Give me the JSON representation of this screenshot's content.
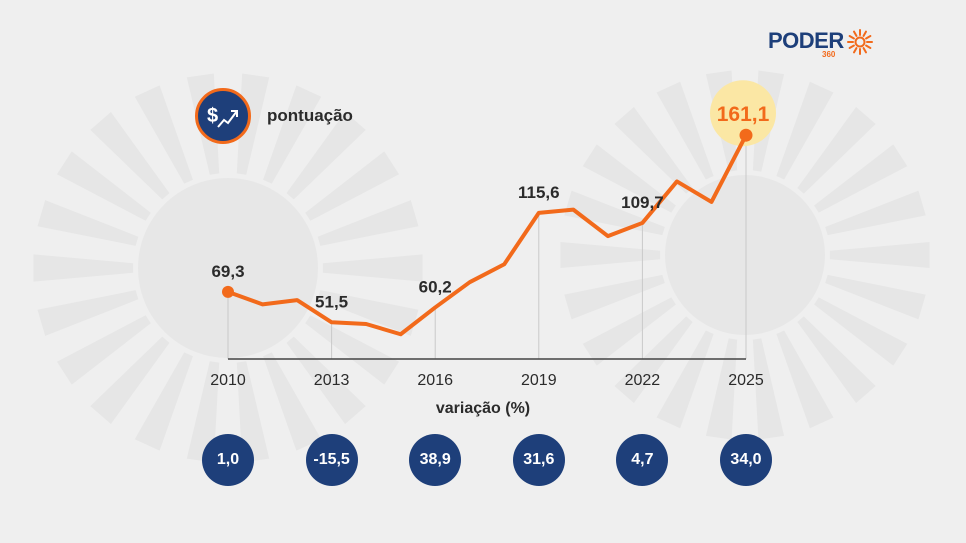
{
  "brand": {
    "name": "PODER",
    "sub": "360"
  },
  "legend": {
    "label": "pontuação",
    "icon": "dollar-trend-up-icon"
  },
  "colors": {
    "line": "#f26a1b",
    "navy": "#1e3f7a",
    "highlight": "#fbe7a4",
    "background": "#efefef"
  },
  "chart_data": {
    "type": "line",
    "x": [
      2010,
      2011,
      2012,
      2013,
      2014,
      2015,
      2016,
      2017,
      2018,
      2019,
      2020,
      2021,
      2022,
      2023,
      2024,
      2025
    ],
    "series": [
      {
        "values": [
          69.3,
          62.0,
          64.5,
          51.5,
          50.5,
          44.5,
          60.2,
          75.0,
          85.5,
          115.6,
          117.5,
          102.0,
          109.7,
          134.0,
          122.0,
          161.1
        ]
      }
    ],
    "tick_labels": [
      "2010",
      "2013",
      "2016",
      "2019",
      "2022",
      "2025"
    ],
    "labeled_points": [
      {
        "year": 2010,
        "label": "69,3"
      },
      {
        "year": 2013,
        "label": "51,5"
      },
      {
        "year": 2016,
        "label": "60,2"
      },
      {
        "year": 2019,
        "label": "115,6"
      },
      {
        "year": 2022,
        "label": "109,7"
      },
      {
        "year": 2025,
        "label": "161,1",
        "highlight": true
      }
    ],
    "xlim": [
      2010,
      2025
    ],
    "ylim": [
      30,
      170
    ],
    "grid": false,
    "variation": {
      "title": "variação (%)",
      "values": [
        "1,0",
        "-15,5",
        "38,9",
        "31,6",
        "4,7",
        "34,0"
      ]
    }
  }
}
